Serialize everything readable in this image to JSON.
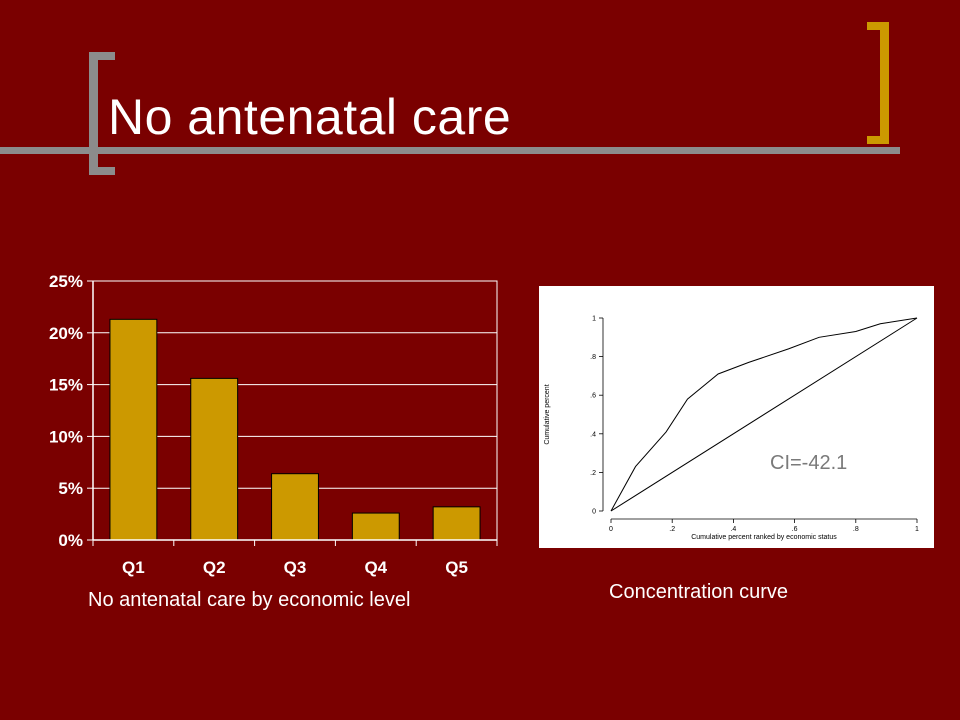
{
  "slide": {
    "title": "No antenatal care",
    "bar_caption": "No antenatal care by economic level",
    "curve_caption": "Concentration curve",
    "ci_text": "CI=-42.1"
  },
  "colors": {
    "background": "#7a0000",
    "bar_fill": "#cc9900",
    "accent_gold": "#cc9900",
    "accent_gray": "#8c8c8c"
  },
  "chart_data": [
    {
      "type": "bar",
      "categories": [
        "Q1",
        "Q2",
        "Q3",
        "Q4",
        "Q5"
      ],
      "values": [
        21.3,
        15.6,
        6.4,
        2.6,
        3.2
      ],
      "ylim": [
        0,
        25
      ],
      "ytick_values": [
        0,
        5,
        10,
        15,
        20,
        25
      ],
      "ytick_labels": [
        "0%",
        "5%",
        "10%",
        "15%",
        "20%",
        "25%"
      ],
      "grid": true,
      "legend": "none"
    },
    {
      "type": "line",
      "xlabel": "Cumulative percent ranked by economic status",
      "ylabel": "Cumulative percent",
      "xlim": [
        0,
        1
      ],
      "ylim": [
        0,
        1
      ],
      "xtick_values": [
        0,
        0.2,
        0.4,
        0.6,
        0.8,
        1
      ],
      "xtick_labels": [
        "0",
        ".2",
        ".4",
        ".6",
        ".8",
        "1"
      ],
      "ytick_values": [
        0,
        0.2,
        0.4,
        0.6,
        0.8,
        1
      ],
      "ytick_labels": [
        "0",
        ".2",
        ".4",
        ".6",
        ".8",
        "1"
      ],
      "series": [
        {
          "points": [
            [
              0,
              0
            ],
            [
              0.08,
              0.23
            ],
            [
              0.18,
              0.41
            ],
            [
              0.25,
              0.58
            ],
            [
              0.35,
              0.71
            ],
            [
              0.45,
              0.77
            ],
            [
              0.58,
              0.84
            ],
            [
              0.68,
              0.9
            ],
            [
              0.8,
              0.93
            ],
            [
              0.88,
              0.97
            ],
            [
              1,
              1
            ]
          ]
        },
        {
          "points": [
            [
              0,
              0
            ],
            [
              1,
              1
            ]
          ]
        }
      ]
    }
  ]
}
